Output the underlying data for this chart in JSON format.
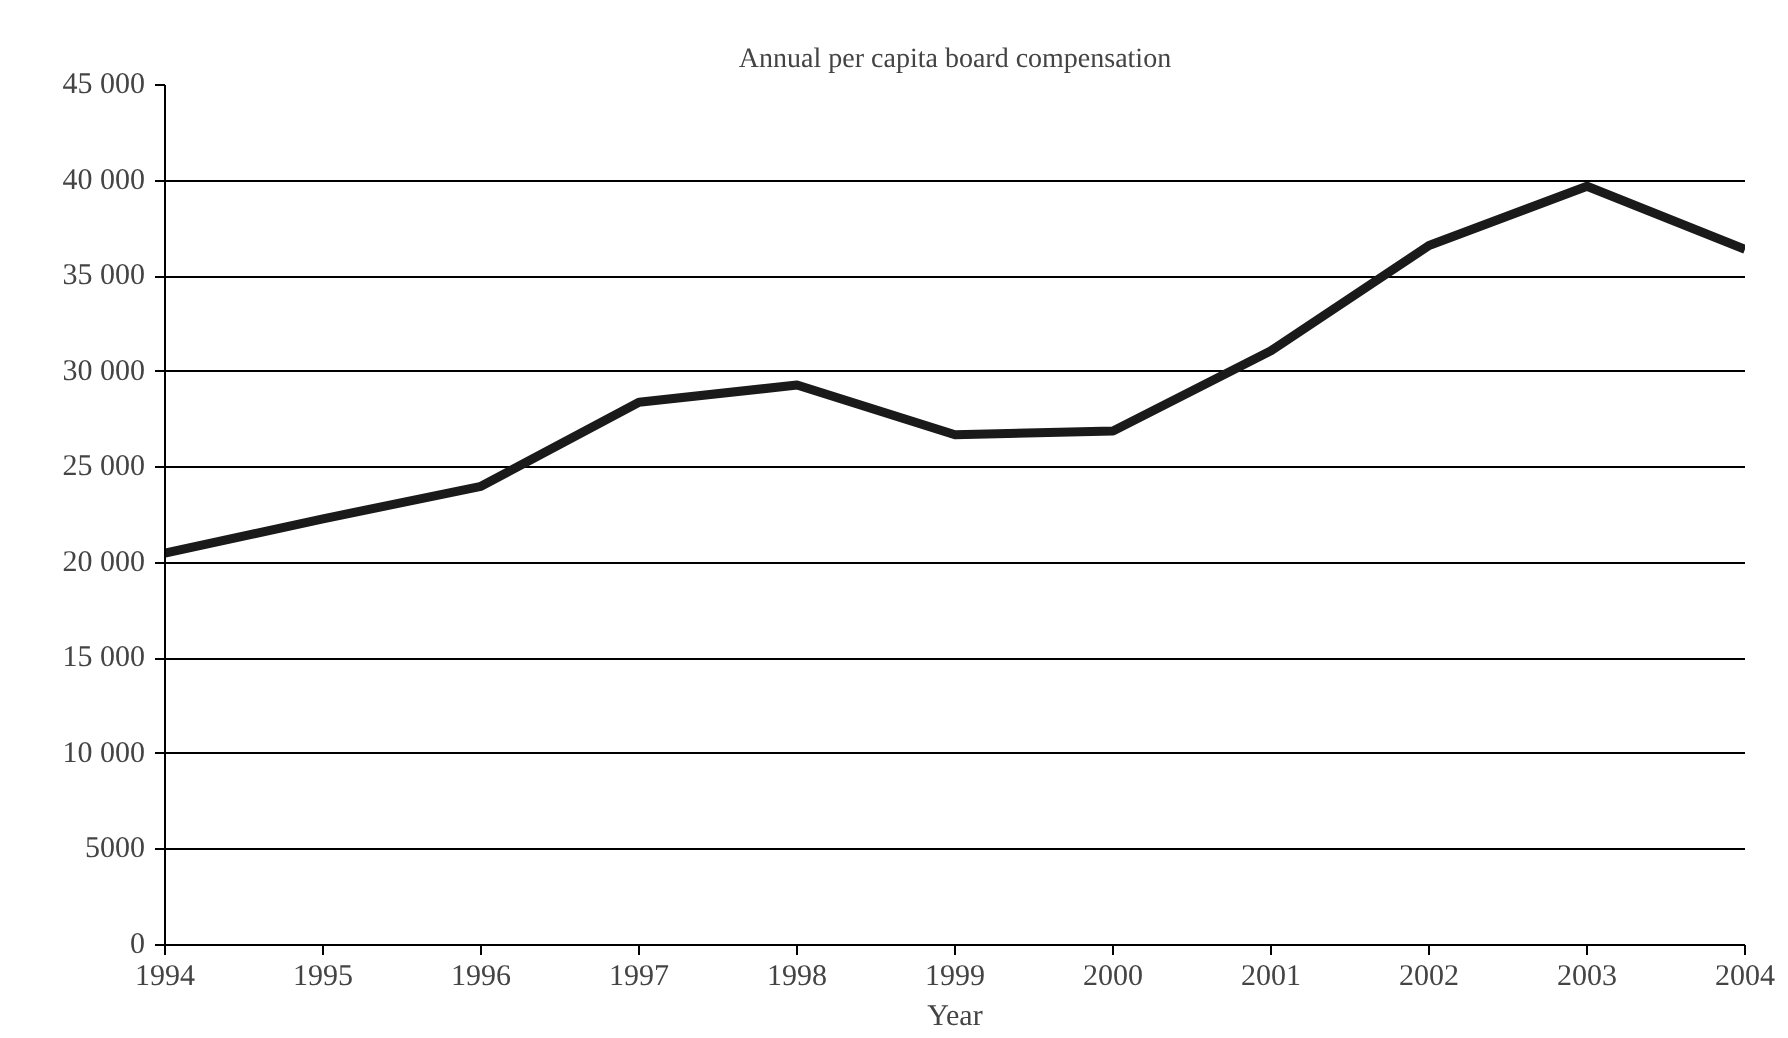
{
  "chart_data": {
    "type": "line",
    "title": "Annual per capita board compensation",
    "xlabel": "Year",
    "x": [
      1994,
      1995,
      1996,
      1997,
      1998,
      1999,
      2000,
      2001,
      2002,
      2003,
      2004
    ],
    "series": [
      {
        "color": "#1a1a1a",
        "values": [
          20500,
          22300,
          24000,
          28400,
          29300,
          26700,
          26900,
          31100,
          36600,
          39700,
          36400
        ]
      }
    ],
    "xlim": [
      1994,
      2004
    ],
    "xticks": [
      1994,
      1995,
      1996,
      1997,
      1998,
      1999,
      2000,
      2001,
      2002,
      2003,
      2004
    ],
    "ylim": [
      0,
      45000
    ],
    "yticks": [
      0,
      {
        "value": 5000,
        "label": "5000"
      },
      {
        "value": 10000,
        "label": "10 000"
      },
      {
        "value": 15000,
        "label": "15 000"
      },
      {
        "value": 20000,
        "label": "20 000"
      },
      {
        "value": 25000,
        "label": "25 000"
      },
      {
        "value": 30000,
        "label": "30 000"
      },
      {
        "value": 35000,
        "label": "35 000"
      },
      {
        "value": 40000,
        "label": "40 000"
      },
      {
        "value": 45000,
        "label": "45 000"
      }
    ],
    "grid": "y",
    "marker": "none",
    "line_style": "solid"
  }
}
